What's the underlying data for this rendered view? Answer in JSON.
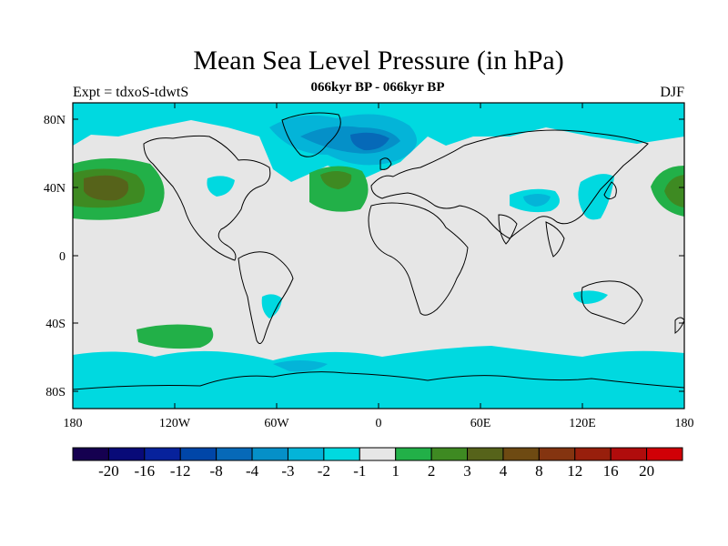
{
  "title": "Mean Sea Level Pressure (in hPa)",
  "subtitle": "066kyr BP - 066kyr BP",
  "left_label": "Expt = tdxoS-tdwtS",
  "right_label": "DJF",
  "map": {
    "projection": "cylindrical-equidistant",
    "background_color": "#e6e6e6",
    "lon_ticks": [
      "180",
      "120W",
      "60W",
      "0",
      "60E",
      "120E",
      "180"
    ],
    "lat_ticks": [
      "80N",
      "40N",
      "0",
      "40S",
      "80S"
    ]
  },
  "colorbar": {
    "colors": [
      "#150050",
      "#080a78",
      "#07229c",
      "#0046a8",
      "#0669b8",
      "#0590c8",
      "#04b4d8",
      "#00d9e0",
      "#e6e6e6",
      "#22b048",
      "#3e8a22",
      "#56631a",
      "#6e4a12",
      "#843410",
      "#981f0c",
      "#b00c0c",
      "#d00006"
    ],
    "labels": [
      "-20",
      "-16",
      "-12",
      "-8",
      "-4",
      "-3",
      "-2",
      "-1",
      "1",
      "2",
      "3",
      "4",
      "8",
      "12",
      "16",
      "20"
    ]
  }
}
